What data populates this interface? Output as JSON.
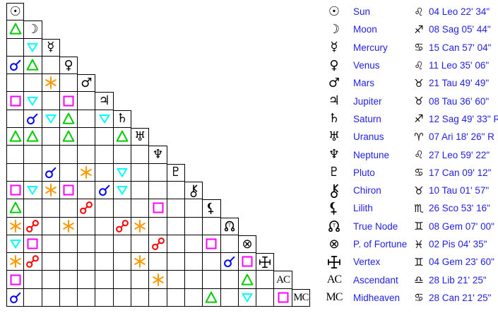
{
  "colors": {
    "text_blue": "#2222DD",
    "glyph_black": "#000000",
    "grid_line": "#000000",
    "background": "#ffffff"
  },
  "aspect_colors": {
    "con": "#0000FF",
    "sex": "#FF9900",
    "squ": "#FF00FF",
    "tri": "#00CC00",
    "opp": "#FF0000",
    "qcx": "#00FFFF"
  },
  "aspect_names": {
    "con": "conjunction",
    "sex": "sextile",
    "squ": "square",
    "tri": "trine",
    "opp": "opposition",
    "qcx": "quincunx"
  },
  "grid": {
    "rows": [
      {
        "planet": "Sun",
        "glyph": "sun",
        "char": "☉",
        "aspects": []
      },
      {
        "planet": "Moon",
        "glyph": "moon",
        "char": "☽",
        "aspects": [
          "tri"
        ]
      },
      {
        "planet": "Mercury",
        "glyph": "mercury",
        "char": "☿",
        "aspects": [
          null,
          "qcx"
        ]
      },
      {
        "planet": "Venus",
        "glyph": "venus",
        "char": "♀",
        "aspects": [
          "con",
          "tri",
          null
        ]
      },
      {
        "planet": "Mars",
        "glyph": "mars",
        "char": "♂",
        "aspects": [
          null,
          null,
          "sex",
          null
        ]
      },
      {
        "planet": "Jupiter",
        "glyph": "jupiter",
        "char": "♃",
        "aspects": [
          "squ",
          "qcx",
          null,
          "squ",
          null
        ]
      },
      {
        "planet": "Saturn",
        "glyph": "saturn",
        "char": "♄",
        "aspects": [
          null,
          "con",
          "qcx",
          "tri",
          null,
          "qcx"
        ]
      },
      {
        "planet": "Uranus",
        "glyph": "uranus",
        "char": "♅",
        "aspects": [
          "tri",
          "tri",
          null,
          "tri",
          null,
          null,
          "tri"
        ]
      },
      {
        "planet": "Neptune",
        "glyph": "neptune",
        "char": "♆",
        "aspects": [
          null,
          null,
          null,
          null,
          null,
          null,
          null,
          null
        ]
      },
      {
        "planet": "Pluto",
        "glyph": "pluto",
        "char": "♇",
        "aspects": [
          null,
          null,
          "con",
          null,
          "sex",
          null,
          "qcx",
          null,
          null
        ]
      },
      {
        "planet": "Chiron",
        "glyph": "chiron",
        "char": null,
        "aspects": [
          "squ",
          "qcx",
          "sex",
          "squ",
          null,
          "con",
          "qcx",
          null,
          null,
          null
        ]
      },
      {
        "planet": "Lilith",
        "glyph": "lilith",
        "char": null,
        "aspects": [
          "tri",
          null,
          null,
          null,
          "opp",
          null,
          null,
          null,
          "squ",
          null,
          null
        ]
      },
      {
        "planet": "True Node",
        "glyph": "truenode",
        "char": null,
        "aspects": [
          "sex",
          "opp",
          null,
          "sex",
          null,
          null,
          "opp",
          "sex",
          null,
          null,
          null,
          null
        ]
      },
      {
        "planet": "P. of Fortune",
        "glyph": "fortune",
        "char": "⊗",
        "aspects": [
          "qcx",
          "squ",
          null,
          null,
          null,
          null,
          null,
          null,
          "opp",
          null,
          null,
          "squ",
          null
        ]
      },
      {
        "planet": "Vertex",
        "glyph": "vertex",
        "char": null,
        "aspects": [
          "sex",
          "opp",
          null,
          null,
          null,
          null,
          null,
          "sex",
          null,
          null,
          null,
          null,
          "con",
          "squ"
        ]
      },
      {
        "planet": "Ascendant",
        "glyph": "AC",
        "char": null,
        "aspects": [
          "squ",
          null,
          null,
          null,
          null,
          null,
          null,
          null,
          "sex",
          null,
          null,
          null,
          null,
          "tri",
          null
        ]
      },
      {
        "planet": "Midheaven",
        "glyph": "MC",
        "char": null,
        "aspects": [
          "con",
          null,
          null,
          null,
          null,
          null,
          null,
          null,
          null,
          null,
          null,
          "tri",
          null,
          "qcx",
          null,
          "squ"
        ]
      }
    ]
  },
  "table": {
    "rows": [
      {
        "glyph": "sun",
        "char": "☉",
        "name": "Sun",
        "sign": "♌",
        "position": "04 Leo 22' 34\""
      },
      {
        "glyph": "moon",
        "char": "☽",
        "name": "Moon",
        "sign": "♐",
        "position": "08 Sag 05' 44\""
      },
      {
        "glyph": "mercury",
        "char": "☿",
        "name": "Mercury",
        "sign": "♋",
        "position": "15 Can 57' 04\""
      },
      {
        "glyph": "venus",
        "char": "♀",
        "name": "Venus",
        "sign": "♌",
        "position": "11 Leo 35' 06\""
      },
      {
        "glyph": "mars",
        "char": "♂",
        "name": "Mars",
        "sign": "♉",
        "position": "21 Tau 49' 49\""
      },
      {
        "glyph": "jupiter",
        "char": "♃",
        "name": "Jupiter",
        "sign": "♉",
        "position": "08 Tau 36' 60\""
      },
      {
        "glyph": "saturn",
        "char": "♄",
        "name": "Saturn",
        "sign": "♐",
        "position": "12 Sag 49' 33\" R"
      },
      {
        "glyph": "uranus",
        "char": "♅",
        "name": "Uranus",
        "sign": "♈",
        "position": "07 Ari 18' 26\" R"
      },
      {
        "glyph": "neptune",
        "char": "♆",
        "name": "Neptune",
        "sign": "♌",
        "position": "27 Leo 59' 22\""
      },
      {
        "glyph": "pluto",
        "char": "♇",
        "name": "Pluto",
        "sign": "♋",
        "position": "17 Can 09' 12\""
      },
      {
        "glyph": "chiron",
        "char": null,
        "name": "Chiron",
        "sign": "♉",
        "position": "10 Tau 01' 57\""
      },
      {
        "glyph": "lilith",
        "char": null,
        "name": "Lilith",
        "sign": "♏",
        "position": "26 Sco 53' 16\""
      },
      {
        "glyph": "truenode",
        "char": null,
        "name": "True Node",
        "sign": "♊",
        "position": "08 Gem 07' 00\""
      },
      {
        "glyph": "fortune",
        "char": "⊗",
        "name": "P. of Fortune",
        "sign": "♓",
        "position": "02 Pis 04' 35\""
      },
      {
        "glyph": "vertex",
        "char": null,
        "name": "Vertex",
        "sign": "♊",
        "position": "04 Gem 23' 60\""
      },
      {
        "glyph": "AC",
        "char": null,
        "name": "Ascendant",
        "sign": "♎",
        "position": "28 Lib 21' 25\""
      },
      {
        "glyph": "MC",
        "char": null,
        "name": "Midheaven",
        "sign": "♋",
        "position": "28 Can 21' 25\""
      }
    ]
  }
}
